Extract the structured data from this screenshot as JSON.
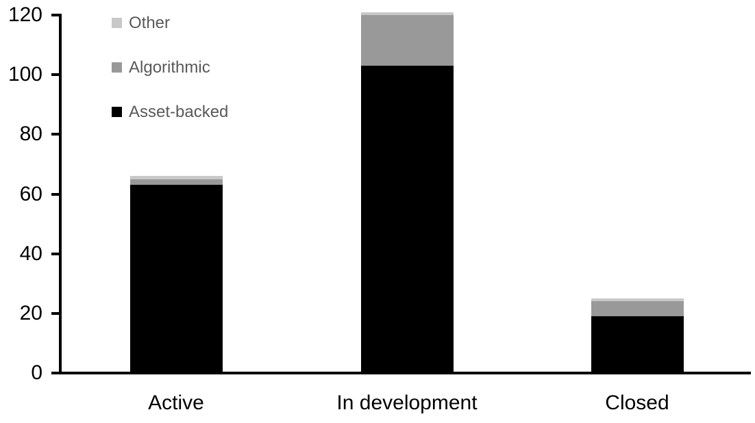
{
  "chart_data": {
    "type": "bar",
    "stacked": true,
    "title": "",
    "xlabel": "",
    "ylabel": "",
    "categories": [
      "Active",
      "In development",
      "Closed"
    ],
    "series": [
      {
        "name": "Asset-backed",
        "color": "#000000",
        "values": [
          63,
          103,
          19
        ]
      },
      {
        "name": "Algorithmic",
        "color": "#999999",
        "values": [
          2,
          17,
          5
        ]
      },
      {
        "name": "Other",
        "color": "#c8c8c8",
        "values": [
          1,
          1,
          1
        ]
      }
    ],
    "ylim": [
      0,
      120
    ],
    "yticks": [
      0,
      20,
      40,
      60,
      80,
      100,
      120
    ],
    "grid": false,
    "legend_position": "top-left",
    "legend_order": [
      "Other",
      "Algorithmic",
      "Asset-backed"
    ],
    "colors": {
      "axis": "#000000",
      "tick_label": "#000000",
      "category_label": "#000000",
      "legend_text": "#595959",
      "background": "#ffffff"
    }
  }
}
